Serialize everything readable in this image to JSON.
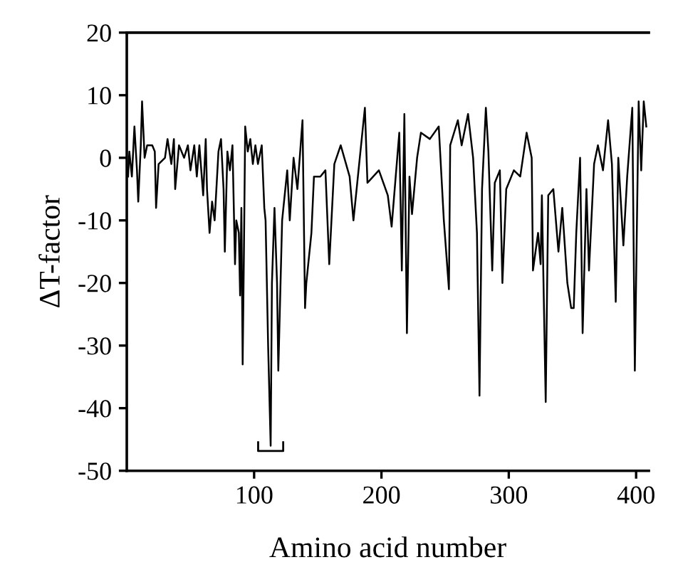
{
  "chart_data": {
    "type": "line",
    "xlabel": "Amino acid number",
    "ylabel": "ΔT-factor",
    "x": [
      1,
      2,
      4,
      6,
      8,
      9,
      11,
      12,
      14,
      16,
      20,
      22,
      23,
      25,
      30,
      32,
      35,
      37,
      38,
      41,
      45,
      48,
      50,
      53,
      55,
      57,
      60,
      62,
      63,
      65,
      67,
      69,
      72,
      74,
      76,
      77,
      79,
      81,
      83,
      85,
      86,
      88,
      89,
      90,
      91,
      92,
      93,
      95,
      97,
      99,
      101,
      103,
      106,
      108,
      109,
      111,
      113,
      114,
      116,
      118,
      119,
      120,
      122,
      123,
      126,
      128,
      131,
      134,
      138,
      140,
      141,
      145,
      147,
      152,
      156,
      159,
      163,
      168,
      175,
      178,
      182,
      187,
      189,
      198,
      205,
      208,
      214,
      216,
      218,
      220,
      222,
      224,
      228,
      231,
      238,
      245,
      249,
      253,
      254,
      260,
      263,
      268,
      272,
      275,
      277,
      279,
      282,
      284,
      287,
      289,
      293,
      295,
      298,
      304,
      309,
      314,
      318,
      319,
      323,
      325,
      326,
      329,
      331,
      335,
      339,
      342,
      346,
      349,
      351,
      353,
      356,
      358,
      361,
      363,
      367,
      370,
      374,
      378,
      381,
      384,
      386,
      390,
      393,
      397,
      399,
      402,
      404,
      406,
      408
    ],
    "values": [
      -3,
      1,
      -3,
      5,
      -2,
      -7,
      2,
      9,
      0,
      2,
      2,
      1,
      -8,
      -1,
      0,
      3,
      -1,
      3,
      -5,
      2,
      0,
      2,
      -2,
      2,
      -3,
      2,
      -6,
      3,
      -5,
      -12,
      -7,
      -10,
      1,
      3,
      -5,
      -15,
      1,
      -2,
      2,
      -17,
      -10,
      -12,
      -22,
      -8,
      -33,
      -15,
      5,
      1,
      3,
      -1,
      2,
      -1,
      2,
      -8,
      -10,
      -30,
      -46,
      -20,
      -8,
      -20,
      -34,
      -26,
      -10,
      -8,
      -2,
      -10,
      0,
      -5,
      6,
      -24,
      -20,
      -12,
      -3,
      -3,
      -2,
      -17,
      -1,
      2,
      -3,
      -10,
      -2,
      8,
      -4,
      -2,
      -6,
      -11,
      4,
      -18,
      7,
      -28,
      -3,
      -9,
      0,
      4,
      3,
      5,
      -10,
      -21,
      2,
      6,
      2,
      7,
      0,
      -12,
      -38,
      -5,
      8,
      1,
      -18,
      -4,
      -2,
      -20,
      -5,
      -2,
      -3,
      4,
      0,
      -18,
      -12,
      -17,
      -6,
      -39,
      -6,
      -5,
      -15,
      -8,
      -20,
      -24,
      -24,
      -12,
      0,
      -28,
      -5,
      -18,
      -1,
      2,
      -2,
      6,
      -1,
      -23,
      0,
      -14,
      -3,
      8,
      -34,
      9,
      -2,
      9,
      5
    ],
    "color": "#000000",
    "xlim": [
      0,
      410
    ],
    "xticks": [
      100,
      200,
      300,
      400
    ],
    "ylim": [
      -50,
      20
    ],
    "yticks": [
      -50,
      -40,
      -30,
      -20,
      -10,
      0,
      10,
      20
    ],
    "grid": false,
    "legend": false
  }
}
